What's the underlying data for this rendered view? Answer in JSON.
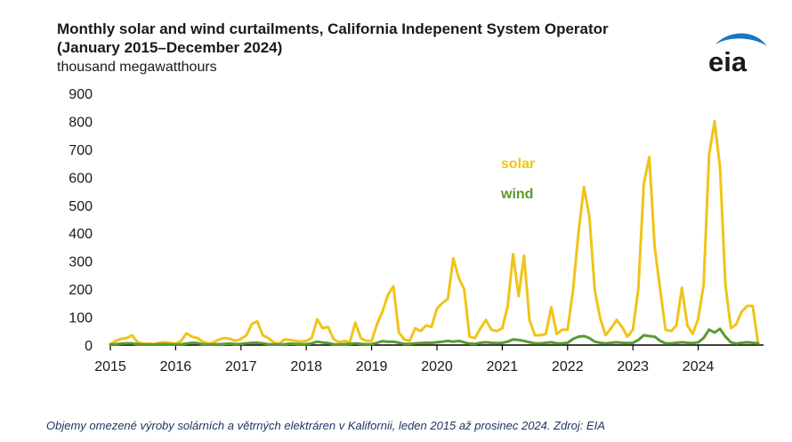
{
  "title_line1": "Monthly solar and wind curtailments, California Indepenent System Operator",
  "title_line2": "(January 2015–December 2024)",
  "unit_label": "thousand megawatthours",
  "logo_text": "eia",
  "caption": "Objemy omezené výroby solárních a větrných elektráren v Kalifornii, leden 2015 až prosinec 2024. Zdroj: EIA",
  "colors": {
    "solar": "#f0c419",
    "wind": "#5a9a2f",
    "axis": "#000000",
    "logo_blue": "#1e76c2"
  },
  "chart_data": {
    "type": "line",
    "title": "Monthly solar and wind curtailments, California Indepenent System Operator (January 2015–December 2024)",
    "ylabel": "thousand megawatthours",
    "xlabel": "",
    "x_start": "2015-01",
    "x_end": "2024-12",
    "x_ticks": [
      "2015",
      "2016",
      "2017",
      "2018",
      "2019",
      "2020",
      "2021",
      "2022",
      "2023",
      "2024"
    ],
    "ylim": [
      0,
      900
    ],
    "y_ticks": [
      0,
      100,
      200,
      300,
      400,
      500,
      600,
      700,
      800,
      900
    ],
    "grid": false,
    "legend": "inline-labels",
    "series": [
      {
        "name": "solar",
        "values": [
          3,
          15,
          22,
          25,
          35,
          10,
          5,
          5,
          3,
          8,
          10,
          8,
          5,
          15,
          42,
          30,
          25,
          12,
          5,
          10,
          20,
          25,
          22,
          15,
          22,
          35,
          75,
          85,
          35,
          25,
          10,
          5,
          20,
          18,
          15,
          12,
          15,
          25,
          92,
          60,
          65,
          22,
          10,
          15,
          10,
          80,
          25,
          15,
          15,
          75,
          120,
          180,
          210,
          45,
          20,
          15,
          60,
          50,
          70,
          65,
          130,
          150,
          165,
          310,
          240,
          200,
          30,
          25,
          60,
          90,
          55,
          50,
          60,
          140,
          325,
          175,
          320,
          90,
          35,
          35,
          40,
          135,
          40,
          55,
          55,
          195,
          400,
          565,
          460,
          195,
          95,
          35,
          60,
          90,
          65,
          30,
          55,
          200,
          575,
          672,
          350,
          200,
          55,
          50,
          70,
          205,
          70,
          40,
          95,
          215,
          680,
          800,
          635,
          215,
          60,
          75,
          120,
          140,
          140,
          5
        ]
      },
      {
        "name": "wind",
        "values": [
          2,
          3,
          5,
          6,
          6,
          3,
          2,
          2,
          2,
          3,
          3,
          2,
          2,
          3,
          5,
          8,
          7,
          3,
          2,
          2,
          3,
          4,
          5,
          3,
          4,
          6,
          8,
          8,
          6,
          3,
          2,
          2,
          3,
          5,
          4,
          3,
          3,
          6,
          12,
          9,
          7,
          3,
          2,
          3,
          4,
          6,
          4,
          3,
          3,
          8,
          14,
          12,
          12,
          8,
          4,
          4,
          6,
          7,
          8,
          8,
          10,
          12,
          15,
          12,
          15,
          10,
          5,
          4,
          8,
          10,
          8,
          7,
          8,
          12,
          20,
          18,
          15,
          10,
          6,
          6,
          8,
          10,
          6,
          6,
          8,
          22,
          30,
          32,
          25,
          12,
          8,
          6,
          8,
          10,
          8,
          7,
          8,
          18,
          35,
          32,
          30,
          15,
          6,
          6,
          8,
          10,
          8,
          7,
          10,
          25,
          55,
          45,
          58,
          30,
          10,
          5,
          8,
          10,
          8,
          6
        ]
      }
    ]
  }
}
